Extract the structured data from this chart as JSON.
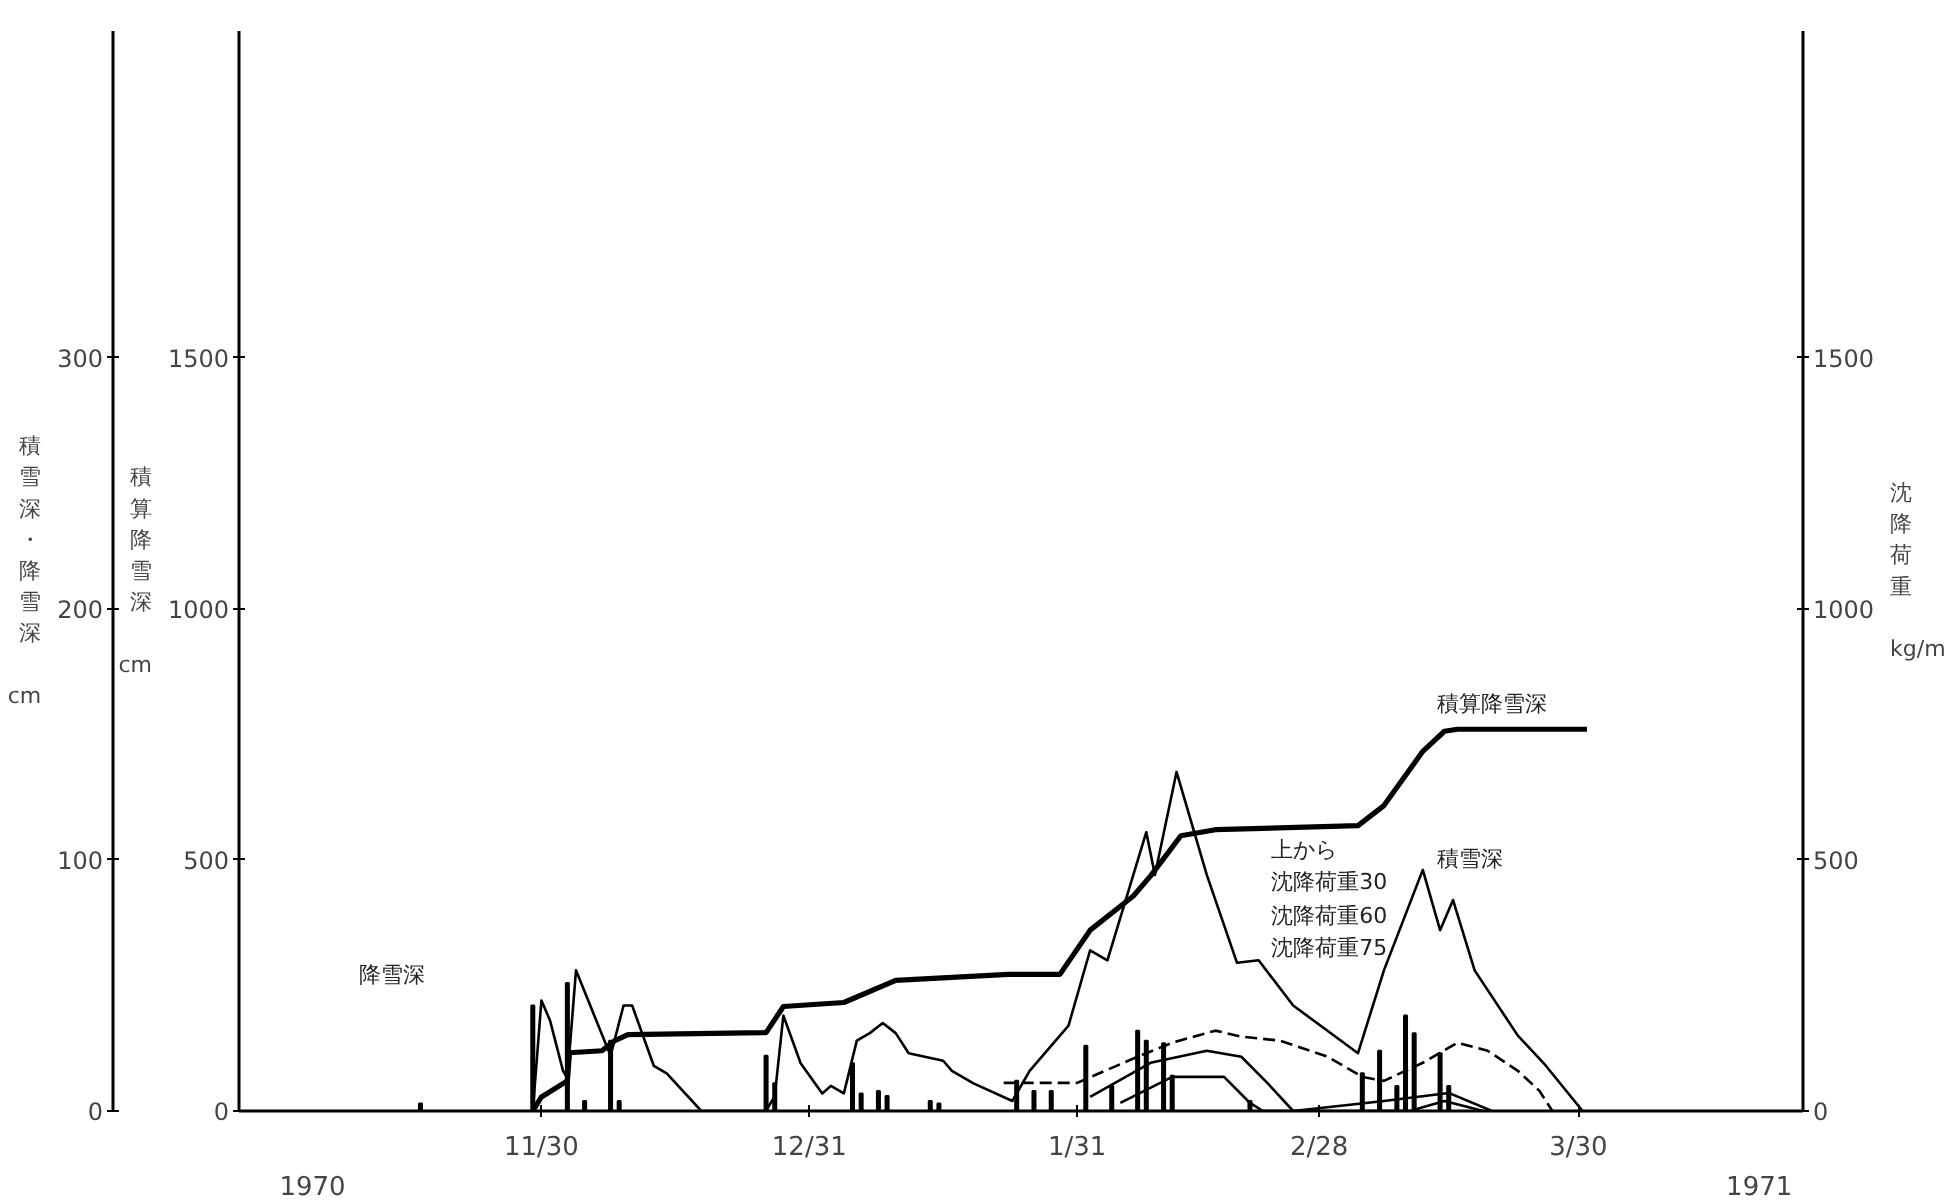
{
  "chart_data": {
    "type": "line",
    "ylabel": "積雪深・降雪深 cm",
    "y3label": "積算降雪深 cm",
    "y2label": "沈降荷重 kg/m",
    "xlim": [
      "1970-10-26",
      "1971-04-25"
    ],
    "xticks": [
      {
        "value": "1970-11-30",
        "label": "11/30"
      },
      {
        "value": "1970-12-31",
        "label": "12/31"
      },
      {
        "value": "1971-01-31",
        "label": "1/31"
      },
      {
        "value": "1971-02-28",
        "label": "2/28"
      },
      {
        "value": "1971-03-30",
        "label": "3/30"
      }
    ],
    "ylim": [
      0,
      430
    ],
    "yticks": [
      0,
      100,
      200,
      300
    ],
    "y3lim": [
      0,
      2150
    ],
    "y3ticks": [
      0,
      500,
      1000,
      1500
    ],
    "y2lim": [
      0,
      2150
    ],
    "y2ticks": [
      0,
      500,
      1000,
      1500
    ],
    "grid": false,
    "series": [
      {
        "type": "bar",
        "axis": "y",
        "color": "#000000",
        "x": [
          "1970-11-16",
          "1970-11-29",
          "1970-12-03",
          "1970-12-05",
          "1970-12-08",
          "1970-12-09",
          "1970-12-26",
          "1970-12-27",
          "1971-01-05",
          "1971-01-06",
          "1971-01-08",
          "1971-01-09",
          "1971-01-14",
          "1971-01-15",
          "1971-01-24",
          "1971-01-26",
          "1971-01-28",
          "1971-02-01",
          "1971-02-04",
          "1971-02-07",
          "1971-02-08",
          "1971-02-10",
          "1971-02-11",
          "1971-02-20",
          "1971-03-05",
          "1971-03-07",
          "1971-03-09",
          "1971-03-10",
          "1971-03-11",
          "1971-03-14",
          "1971-03-15"
        ],
        "values": [
          3,
          42,
          51,
          4,
          28,
          4,
          22,
          11,
          19,
          7,
          8,
          6,
          4,
          3,
          12,
          8,
          8,
          26,
          10,
          32,
          28,
          27,
          14,
          4,
          15,
          24,
          10,
          38,
          31,
          23,
          10
        ]
      },
      {
        "axis": "y",
        "color": "#000000",
        "line_style": "solid",
        "x": [
          "1970-11-29",
          "1970-11-30",
          "1970-12-01",
          "1970-12-02T12:00",
          "1970-12-03",
          "1970-12-04",
          "1970-12-08",
          "1970-12-09T12:00",
          "1970-12-10T12:00",
          "1970-12-13",
          "1970-12-14T12:00",
          "1970-12-18T12:00",
          "1970-12-26",
          "1970-12-27",
          "1970-12-28",
          "1970-12-30",
          "1971-01-01T12:00",
          "1971-01-02T12:00",
          "1971-01-04",
          "1971-01-05T12:00",
          "1971-01-07",
          "1971-01-08T12:00",
          "1971-01-10",
          "1971-01-11T12:00",
          "1971-01-15T12:00",
          "1971-01-16T12:00",
          "1971-01-19",
          "1971-01-23T12:00",
          "1971-01-25T12:00",
          "1971-01-30",
          "1971-02-01T12:00",
          "1971-02-03T12:00",
          "1971-02-08",
          "1971-02-09",
          "1971-02-11T12:00",
          "1971-02-15",
          "1971-02-18T12:00",
          "1971-02-21",
          "1971-02-25",
          "1971-03-04T12:00",
          "1971-03-07T12:00",
          "1971-03-12",
          "1971-03-14",
          "1971-03-15T12:00",
          "1971-03-18",
          "1971-03-23",
          "1971-03-26",
          "1971-03-30T12:00"
        ],
        "values": [
          0,
          44,
          36,
          16,
          13,
          56,
          22,
          42,
          42,
          18,
          15,
          0,
          0,
          6,
          38,
          19,
          7,
          10,
          7,
          28,
          31,
          35,
          31,
          23,
          20,
          16,
          11,
          4,
          16,
          34,
          64,
          60,
          111,
          94,
          135,
          94,
          59,
          60,
          42,
          23,
          56,
          96,
          72,
          84,
          56,
          30,
          19,
          0
        ]
      },
      {
        "axis": "y3",
        "color": "#000000",
        "line_style": "solid",
        "x": [
          "1970-11-29",
          "1970-11-30",
          "1970-12-03",
          "1970-12-03T06:00",
          "1970-12-07",
          "1970-12-08T12:00",
          "1970-12-10",
          "1970-12-26",
          "1970-12-28",
          "1971-01-04",
          "1971-01-10",
          "1971-01-23",
          "1971-01-29",
          "1971-02-01T12:00",
          "1971-02-06T12:00",
          "1971-02-08T12:00",
          "1971-02-12",
          "1971-02-16",
          "1971-03-04T12:00",
          "1971-03-07T12:00",
          "1971-03-12",
          "1971-03-14T12:00",
          "1971-03-16",
          "1971-03-31"
        ],
        "values": [
          0,
          28,
          60,
          116,
          120,
          140,
          152,
          156,
          208,
          216,
          260,
          272,
          272,
          360,
          428,
          468,
          548,
          560,
          568,
          608,
          716,
          756,
          760,
          760
        ]
      },
      {
        "axis": "y2",
        "color": "#000000",
        "line_style": "dashed",
        "x": [
          "1971-01-22T12:00",
          "1971-01-31",
          "1971-02-07",
          "1971-02-11",
          "1971-02-16",
          "1971-02-19",
          "1971-02-23T12:00",
          "1971-03-01",
          "1971-03-05",
          "1971-03-07T12:00",
          "1971-03-12",
          "1971-03-16",
          "1971-03-19T12:00",
          "1971-03-23",
          "1971-03-25T12:00",
          "1971-03-27"
        ],
        "values": [
          56,
          56,
          108,
          136,
          160,
          148,
          140,
          108,
          68,
          60,
          96,
          136,
          120,
          80,
          40,
          0
        ]
      },
      {
        "axis": "y2",
        "color": "#000000",
        "line_style": "solid",
        "x": [
          "1971-02-01T12:00",
          "1971-02-08T12:00",
          "1971-02-15",
          "1971-02-19",
          "1971-02-22",
          "1971-02-25",
          "1971-03-07T12:00",
          "1971-03-15",
          "1971-03-20"
        ],
        "values": [
          28,
          96,
          120,
          108,
          56,
          0,
          20,
          36,
          0
        ]
      },
      {
        "axis": "y2",
        "color": "#000000",
        "line_style": "solid",
        "x": [
          "1971-02-05",
          "1971-02-11",
          "1971-02-17",
          "1971-02-20",
          "1971-02-21T12:00",
          "1971-03-10T12:00",
          "1971-03-14T12:00",
          "1971-03-19"
        ],
        "values": [
          16,
          68,
          68,
          16,
          0,
          0,
          20,
          0
        ]
      }
    ],
    "annotations": [
      "降雪深",
      "積算降雪深",
      "積雪深",
      "上から",
      "沈降荷重30",
      "沈降荷重60",
      "沈降荷重75",
      "1970",
      "1971"
    ]
  }
}
